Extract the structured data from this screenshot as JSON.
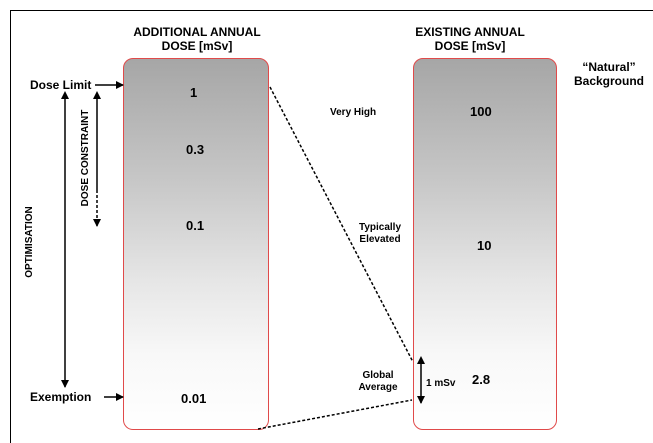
{
  "additional": {
    "header_line1": "ADDITIONAL ANNUAL",
    "header_line2": "DOSE [mSv]",
    "values": [
      "1",
      "0.3",
      "0.1",
      "0.01"
    ]
  },
  "existing": {
    "header_line1": "EXISTING ANNUAL",
    "header_line2": "DOSE [mSv]",
    "values": [
      "100",
      "10",
      "2.8"
    ],
    "natural_line1": "“Natural”",
    "natural_line2": "Background",
    "very_high": "Very High",
    "typically_line1": "Typically",
    "typically_line2": "Elevated",
    "global_line1": "Global",
    "global_line2": "Average",
    "one_msv": "1 mSv"
  },
  "left": {
    "dose_limit": "Dose Limit",
    "exemption": "Exemption",
    "dose_constraint": "DOSE CONSTRAINT",
    "optimisation": "OPTIMISATION"
  },
  "colors": {
    "column_border": "#e04a4a",
    "gradient_top": "#a6a6a6",
    "gradient_bottom": "#ffffff"
  }
}
